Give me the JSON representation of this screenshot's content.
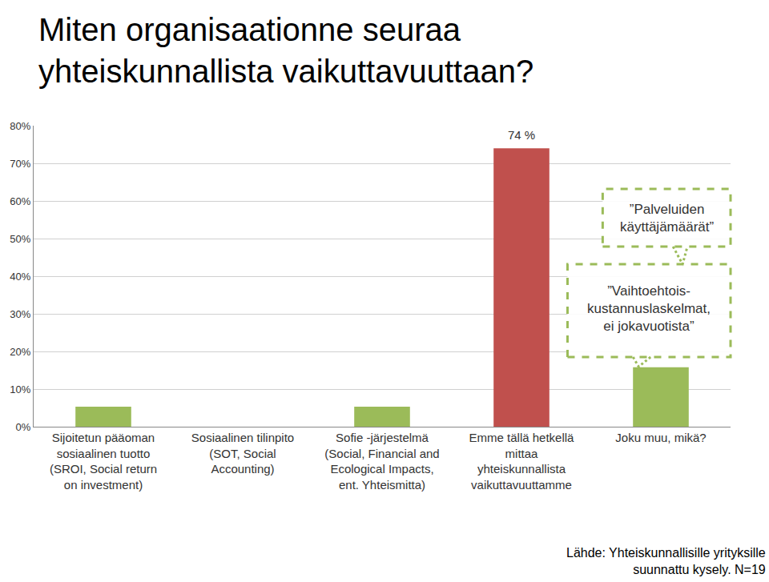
{
  "chart_data": {
    "type": "bar",
    "title": "Miten organisaationne seuraa\nyhteiskunnallista vaikuttavuuttaan?",
    "categories": [
      "Sijoitetun pääoman\nsosiaalinen tuotto\n(SROI, Social return\non investment)",
      "Sosiaalinen tilinpito\n(SOT, Social\nAccounting)",
      "Sofie -järjestelmä\n(Social, Financial and\nEcological Impacts,\nent. Yhteismitta)",
      "Emme tällä hetkellä\nmittaa\nyhteiskunnallista\nvaikuttavuuttamme",
      "Joku muu, mikä?"
    ],
    "values": [
      5.3,
      0,
      5.3,
      74,
      15.8
    ],
    "colors": [
      "#9bbb59",
      "#9bbb59",
      "#9bbb59",
      "#c0504d",
      "#9bbb59"
    ],
    "ylim": [
      0,
      80
    ],
    "yticks": [
      {
        "value": 0,
        "label": "0%"
      },
      {
        "value": 10,
        "label": "10%"
      },
      {
        "value": 20,
        "label": "20%"
      },
      {
        "value": 30,
        "label": "30%"
      },
      {
        "value": 40,
        "label": "40%"
      },
      {
        "value": 50,
        "label": "50%"
      },
      {
        "value": 60,
        "label": "60%"
      },
      {
        "value": 70,
        "label": "70%"
      },
      {
        "value": 80,
        "label": "80%"
      }
    ],
    "grid": true,
    "annotations": [
      {
        "text": "74 %",
        "category": "Emme tällä hetkellä\nmittaa\nyhteiskunnallista\nvaikuttavuuttamme"
      }
    ],
    "callouts": [
      "”Palveluiden\nkäyttäjämäärät”",
      "”Vaihtoehtois-\nkustannuslaskelmat,\nei jokavuotista”"
    ],
    "source": "Lähde: Yhteiskunnallisille yrityksille\nsuunnattu kysely. N=19"
  }
}
